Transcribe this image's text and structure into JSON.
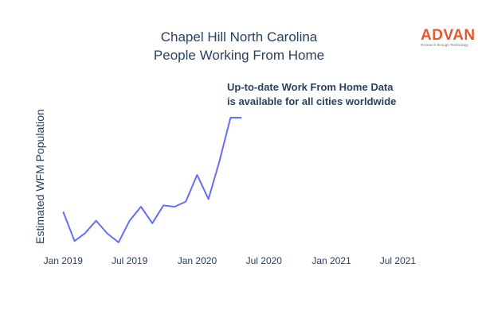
{
  "chart_data": {
    "type": "line",
    "title_lines": [
      "Chapel Hill North Carolina",
      "People Working From Home"
    ],
    "annotation_lines": [
      "Up-to-date Work From Home Data",
      "is available for all cities worldwide"
    ],
    "xlabel": "",
    "ylabel": "Estimated WFM Population",
    "x_ticks": [
      "Jan 2019",
      "Jul 2019",
      "Jan 2020",
      "Jul 2020",
      "Jan 2021",
      "Jul 2021"
    ],
    "x_tick_dates": [
      "2019-01-01",
      "2019-07-01",
      "2020-01-01",
      "2020-07-01",
      "2021-01-01",
      "2021-07-01"
    ],
    "xlim": [
      "2018-12-01",
      "2021-09-01"
    ],
    "ylim": [
      0,
      100
    ],
    "y_ticks_visible": false,
    "grid": false,
    "line_color": "#636efa",
    "series": [
      {
        "x": [
          "2019-01-01",
          "2019-02-01",
          "2019-03-01",
          "2019-04-01",
          "2019-05-01",
          "2019-06-01",
          "2019-07-01",
          "2019-08-01",
          "2019-09-01",
          "2019-10-01",
          "2019-11-01",
          "2019-12-01",
          "2020-01-01",
          "2020-02-01",
          "2020-03-01",
          "2020-04-01",
          "2020-05-01"
        ],
        "values": [
          26,
          3,
          9,
          19,
          9,
          2,
          19,
          30,
          17,
          31,
          30,
          34,
          55,
          36,
          65,
          100,
          100
        ]
      }
    ]
  },
  "logo": {
    "name": "ADVAN",
    "tagline": "Research through Technology",
    "color": "#e8562a"
  }
}
